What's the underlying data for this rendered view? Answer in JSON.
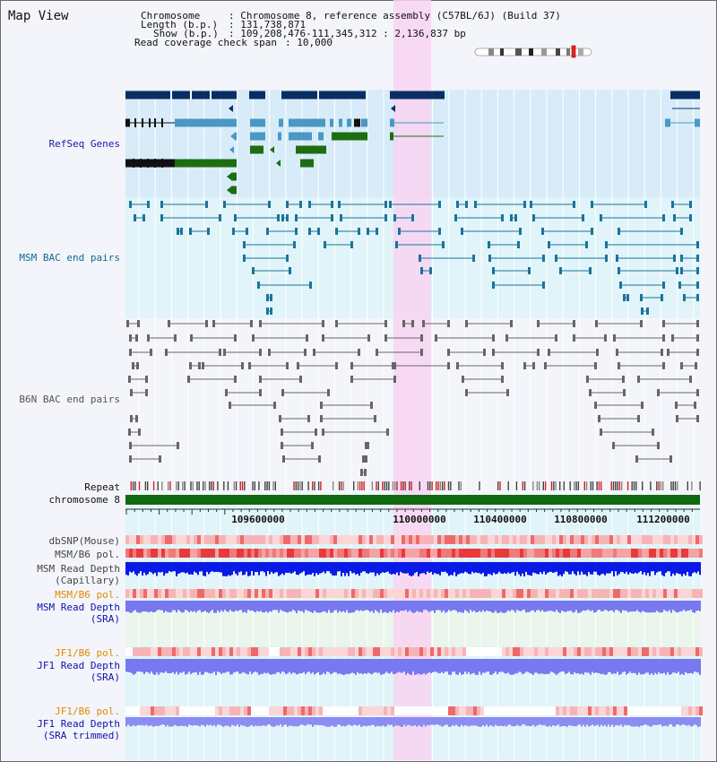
{
  "title": "Map View",
  "info": {
    "chromosome_label": "Chromosome",
    "chromosome_value": ": Chromosome 8, reference assembly (C57BL/6J) (Build 37)",
    "length_label": "Length (b.p.)",
    "length_value": ": 131,738,871",
    "show_label": "Show (b.p.)",
    "show_value": ": 109,208,476-111,345,312 : 2,136,837 bp",
    "coverage_label": "Read coverage check span",
    "coverage_value": ": 10,000"
  },
  "tracks": {
    "refseq": "RefSeq Genes",
    "msm_bac": "MSM BAC end pairs",
    "b6n_bac": "B6N BAC end pairs",
    "repeat": "Repeat",
    "chromosome": "chromosome 8",
    "dbsnp": "dbSNP(Mouse)",
    "msm_b6_pol_1": "MSM/B6 pol.",
    "msm_depth_cap_1": "MSM Read Depth",
    "msm_depth_cap_2": "(Capillary)",
    "msm_b6_pol_2": "MSM/B6 pol.",
    "msm_depth_sra_1": "MSM Read Depth",
    "msm_depth_sra_2": "(SRA)",
    "jf1_b6_pol_1": "JF1/B6 pol.",
    "jf1_depth_sra_1": "JF1 Read Depth",
    "jf1_depth_sra_2": "(SRA)",
    "jf1_b6_pol_2": "JF1/B6 pol.",
    "jf1_depth_trim_1": "JF1 Read Depth",
    "jf1_depth_trim_2": "(SRA trimmed)"
  },
  "ruler": [
    "109600000",
    "110000000",
    "110400000",
    "110800000",
    "111200000"
  ],
  "colors": {
    "refseq_label": "#1a1aa8",
    "msm_label": "#0d6a8a",
    "b6n_label": "#555555",
    "orange_label": "#e08a00",
    "blue_label": "#1010aa",
    "gene_navy": "#0a2e63",
    "gene_teal": "#4a98c4",
    "gene_green": "#1d6e12",
    "msm_pair": "#1a7499",
    "b6n_pair": "#666666",
    "chrom_bar": "#0f6a0f",
    "depth_dark": "#0a1ae6",
    "depth_light": "#7878f0",
    "highlight": "#f8d4f2"
  }
}
